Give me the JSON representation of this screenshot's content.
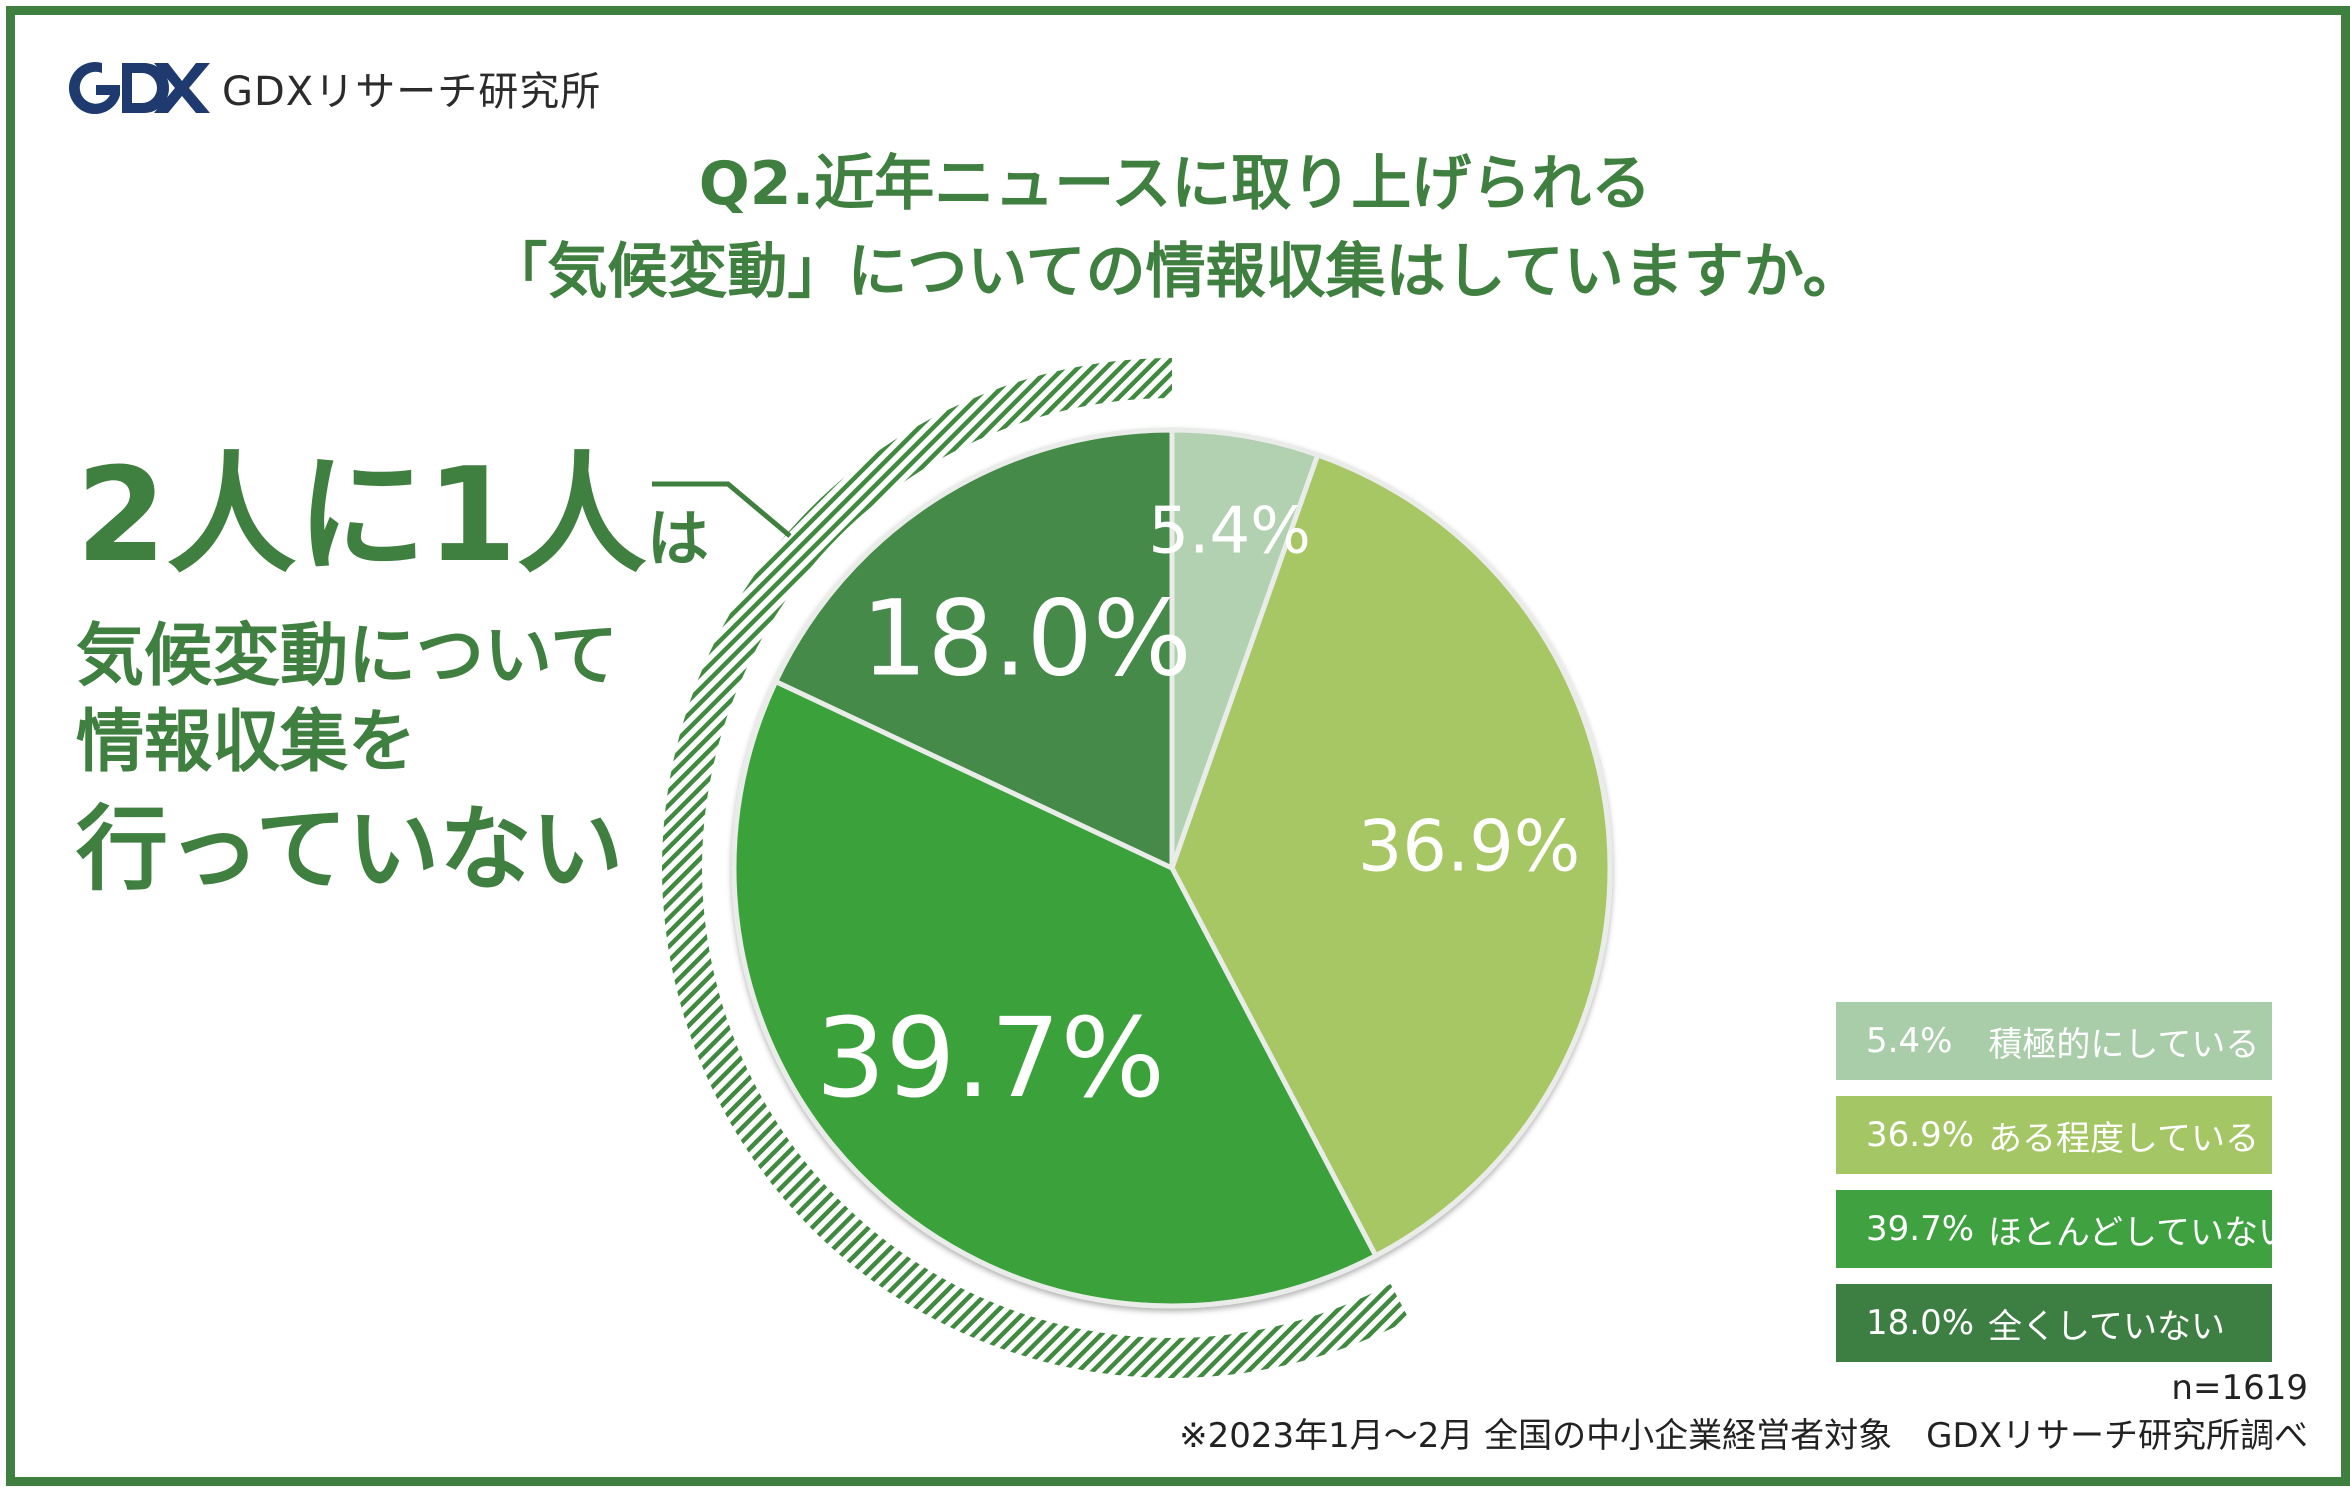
{
  "logo": {
    "text": "GDXリサーチ研究所"
  },
  "title": {
    "line1": "Q2.近年ニュースに取り上げられる",
    "line2": "「気候変動」についての情報収集はしていますか。"
  },
  "callout": {
    "big": "2人に1人",
    "small": "は",
    "line2": "気候変動について",
    "line3": "情報収集を",
    "line4": "行っていない"
  },
  "chart_data": {
    "type": "pie",
    "title": "Q2.近年ニュースに取り上げられる「気候変動」についての情報収集はしていますか。",
    "series": [
      {
        "label": "積極的にしている",
        "value": 5.4,
        "display": "5.4%",
        "color": "#b1d1b1"
      },
      {
        "label": "ある程度している",
        "value": 36.9,
        "display": "36.9%",
        "color": "#a6c764"
      },
      {
        "label": "ほとんどしていない",
        "value": 39.7,
        "display": "39.7%",
        "color": "#3aa23a"
      },
      {
        "label": "全くしていない",
        "value": 18.0,
        "display": "18.0%",
        "color": "#448a48"
      }
    ],
    "start": "12 o'clock",
    "direction": "clockwise",
    "n": "n=1619"
  },
  "legend": [
    {
      "pct": "5.4%",
      "label": "積極的にしている",
      "color": "#a9cca9"
    },
    {
      "pct": "36.9%",
      "label": "ある程度している",
      "color": "#a4c664"
    },
    {
      "pct": "39.7%",
      "label": "ほとんどしていない",
      "color": "#3fa13f"
    },
    {
      "pct": "18.0%",
      "label": "全くしていない",
      "color": "#3d7e42"
    }
  ],
  "footer": {
    "n": "n=1619",
    "note": "※2023年1月〜2月 全国の中小企業経営者対象　GDXリサーチ研究所調べ"
  },
  "colors": {
    "brand": "#3f7f3f",
    "logo_navy": "#1f3a6e"
  }
}
